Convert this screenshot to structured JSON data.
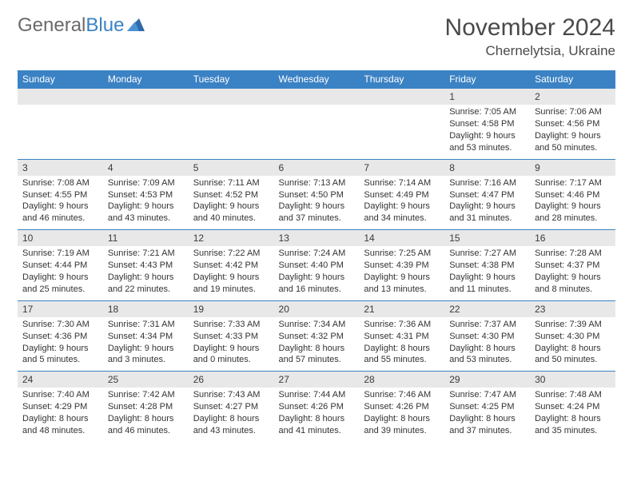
{
  "logo": {
    "text_general": "General",
    "text_blue": "Blue"
  },
  "title": "November 2024",
  "location": "Chernelytsia, Ukraine",
  "colors": {
    "header_bg": "#3b82c4",
    "daynum_bg": "#e8e8e8",
    "row_border": "#3b82c4",
    "text": "#333333",
    "page_bg": "#ffffff"
  },
  "daynames": [
    "Sunday",
    "Monday",
    "Tuesday",
    "Wednesday",
    "Thursday",
    "Friday",
    "Saturday"
  ],
  "weeks": [
    [
      {
        "day": "",
        "sunrise": "",
        "sunset": "",
        "daylight": ""
      },
      {
        "day": "",
        "sunrise": "",
        "sunset": "",
        "daylight": ""
      },
      {
        "day": "",
        "sunrise": "",
        "sunset": "",
        "daylight": ""
      },
      {
        "day": "",
        "sunrise": "",
        "sunset": "",
        "daylight": ""
      },
      {
        "day": "",
        "sunrise": "",
        "sunset": "",
        "daylight": ""
      },
      {
        "day": "1",
        "sunrise": "Sunrise: 7:05 AM",
        "sunset": "Sunset: 4:58 PM",
        "daylight": "Daylight: 9 hours and 53 minutes."
      },
      {
        "day": "2",
        "sunrise": "Sunrise: 7:06 AM",
        "sunset": "Sunset: 4:56 PM",
        "daylight": "Daylight: 9 hours and 50 minutes."
      }
    ],
    [
      {
        "day": "3",
        "sunrise": "Sunrise: 7:08 AM",
        "sunset": "Sunset: 4:55 PM",
        "daylight": "Daylight: 9 hours and 46 minutes."
      },
      {
        "day": "4",
        "sunrise": "Sunrise: 7:09 AM",
        "sunset": "Sunset: 4:53 PM",
        "daylight": "Daylight: 9 hours and 43 minutes."
      },
      {
        "day": "5",
        "sunrise": "Sunrise: 7:11 AM",
        "sunset": "Sunset: 4:52 PM",
        "daylight": "Daylight: 9 hours and 40 minutes."
      },
      {
        "day": "6",
        "sunrise": "Sunrise: 7:13 AM",
        "sunset": "Sunset: 4:50 PM",
        "daylight": "Daylight: 9 hours and 37 minutes."
      },
      {
        "day": "7",
        "sunrise": "Sunrise: 7:14 AM",
        "sunset": "Sunset: 4:49 PM",
        "daylight": "Daylight: 9 hours and 34 minutes."
      },
      {
        "day": "8",
        "sunrise": "Sunrise: 7:16 AM",
        "sunset": "Sunset: 4:47 PM",
        "daylight": "Daylight: 9 hours and 31 minutes."
      },
      {
        "day": "9",
        "sunrise": "Sunrise: 7:17 AM",
        "sunset": "Sunset: 4:46 PM",
        "daylight": "Daylight: 9 hours and 28 minutes."
      }
    ],
    [
      {
        "day": "10",
        "sunrise": "Sunrise: 7:19 AM",
        "sunset": "Sunset: 4:44 PM",
        "daylight": "Daylight: 9 hours and 25 minutes."
      },
      {
        "day": "11",
        "sunrise": "Sunrise: 7:21 AM",
        "sunset": "Sunset: 4:43 PM",
        "daylight": "Daylight: 9 hours and 22 minutes."
      },
      {
        "day": "12",
        "sunrise": "Sunrise: 7:22 AM",
        "sunset": "Sunset: 4:42 PM",
        "daylight": "Daylight: 9 hours and 19 minutes."
      },
      {
        "day": "13",
        "sunrise": "Sunrise: 7:24 AM",
        "sunset": "Sunset: 4:40 PM",
        "daylight": "Daylight: 9 hours and 16 minutes."
      },
      {
        "day": "14",
        "sunrise": "Sunrise: 7:25 AM",
        "sunset": "Sunset: 4:39 PM",
        "daylight": "Daylight: 9 hours and 13 minutes."
      },
      {
        "day": "15",
        "sunrise": "Sunrise: 7:27 AM",
        "sunset": "Sunset: 4:38 PM",
        "daylight": "Daylight: 9 hours and 11 minutes."
      },
      {
        "day": "16",
        "sunrise": "Sunrise: 7:28 AM",
        "sunset": "Sunset: 4:37 PM",
        "daylight": "Daylight: 9 hours and 8 minutes."
      }
    ],
    [
      {
        "day": "17",
        "sunrise": "Sunrise: 7:30 AM",
        "sunset": "Sunset: 4:36 PM",
        "daylight": "Daylight: 9 hours and 5 minutes."
      },
      {
        "day": "18",
        "sunrise": "Sunrise: 7:31 AM",
        "sunset": "Sunset: 4:34 PM",
        "daylight": "Daylight: 9 hours and 3 minutes."
      },
      {
        "day": "19",
        "sunrise": "Sunrise: 7:33 AM",
        "sunset": "Sunset: 4:33 PM",
        "daylight": "Daylight: 9 hours and 0 minutes."
      },
      {
        "day": "20",
        "sunrise": "Sunrise: 7:34 AM",
        "sunset": "Sunset: 4:32 PM",
        "daylight": "Daylight: 8 hours and 57 minutes."
      },
      {
        "day": "21",
        "sunrise": "Sunrise: 7:36 AM",
        "sunset": "Sunset: 4:31 PM",
        "daylight": "Daylight: 8 hours and 55 minutes."
      },
      {
        "day": "22",
        "sunrise": "Sunrise: 7:37 AM",
        "sunset": "Sunset: 4:30 PM",
        "daylight": "Daylight: 8 hours and 53 minutes."
      },
      {
        "day": "23",
        "sunrise": "Sunrise: 7:39 AM",
        "sunset": "Sunset: 4:30 PM",
        "daylight": "Daylight: 8 hours and 50 minutes."
      }
    ],
    [
      {
        "day": "24",
        "sunrise": "Sunrise: 7:40 AM",
        "sunset": "Sunset: 4:29 PM",
        "daylight": "Daylight: 8 hours and 48 minutes."
      },
      {
        "day": "25",
        "sunrise": "Sunrise: 7:42 AM",
        "sunset": "Sunset: 4:28 PM",
        "daylight": "Daylight: 8 hours and 46 minutes."
      },
      {
        "day": "26",
        "sunrise": "Sunrise: 7:43 AM",
        "sunset": "Sunset: 4:27 PM",
        "daylight": "Daylight: 8 hours and 43 minutes."
      },
      {
        "day": "27",
        "sunrise": "Sunrise: 7:44 AM",
        "sunset": "Sunset: 4:26 PM",
        "daylight": "Daylight: 8 hours and 41 minutes."
      },
      {
        "day": "28",
        "sunrise": "Sunrise: 7:46 AM",
        "sunset": "Sunset: 4:26 PM",
        "daylight": "Daylight: 8 hours and 39 minutes."
      },
      {
        "day": "29",
        "sunrise": "Sunrise: 7:47 AM",
        "sunset": "Sunset: 4:25 PM",
        "daylight": "Daylight: 8 hours and 37 minutes."
      },
      {
        "day": "30",
        "sunrise": "Sunrise: 7:48 AM",
        "sunset": "Sunset: 4:24 PM",
        "daylight": "Daylight: 8 hours and 35 minutes."
      }
    ]
  ]
}
